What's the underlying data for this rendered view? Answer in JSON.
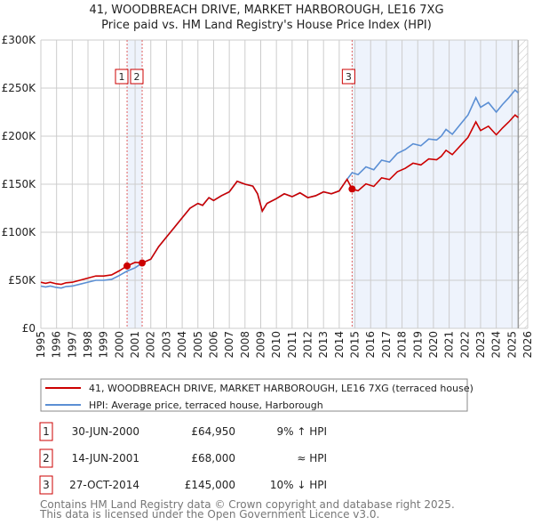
{
  "title": "41, WOODBREACH DRIVE, MARKET HARBOROUGH, LE16 7XG",
  "subtitle": "Price paid vs. HM Land Registry's House Price Index (HPI)",
  "colors": {
    "price": "#cc0000",
    "hpi": "#5b8fd4",
    "shade": "#eef3fc"
  },
  "chart_data": {
    "type": "line",
    "title": "41, WOODBREACH DRIVE, MARKET HARBOROUGH, LE16 7XG",
    "xlim": [
      1995,
      2026
    ],
    "ylim": [
      0,
      300000
    ],
    "y_ticks": [
      0,
      50000,
      100000,
      150000,
      200000,
      250000,
      300000
    ],
    "y_tick_labels": [
      "£0",
      "£50K",
      "£100K",
      "£150K",
      "£200K",
      "£250K",
      "£300K"
    ],
    "x_ticks": [
      "1995",
      "1996",
      "1997",
      "1998",
      "1999",
      "2000",
      "2001",
      "2002",
      "2003",
      "2004",
      "2005",
      "2006",
      "2007",
      "2008",
      "2009",
      "2010",
      "2011",
      "2012",
      "2013",
      "2014",
      "2015",
      "2016",
      "2017",
      "2018",
      "2019",
      "2020",
      "2021",
      "2022",
      "2023",
      "2024",
      "2025",
      "2026"
    ],
    "grid": true,
    "data_end": 2025.4,
    "hpi": [
      [
        1995.0,
        44
      ],
      [
        1995.3,
        43
      ],
      [
        1995.6,
        44
      ],
      [
        1996.0,
        42.5
      ],
      [
        1996.3,
        42
      ],
      [
        1996.6,
        43.5
      ],
      [
        1997.0,
        44
      ],
      [
        1997.5,
        46
      ],
      [
        1998.0,
        48
      ],
      [
        1998.5,
        50
      ],
      [
        1999.0,
        50
      ],
      [
        1999.5,
        51
      ],
      [
        2000.0,
        55
      ],
      [
        2000.49,
        59.6
      ],
      [
        2001.0,
        63
      ],
      [
        2001.45,
        68
      ],
      [
        2002.0,
        72
      ],
      [
        2002.5,
        85
      ],
      [
        2003.0,
        95
      ],
      [
        2003.5,
        105
      ],
      [
        2004.0,
        115
      ],
      [
        2004.5,
        125
      ],
      [
        2005.0,
        130
      ],
      [
        2005.3,
        128
      ],
      [
        2005.7,
        136
      ],
      [
        2006.0,
        133
      ],
      [
        2006.5,
        138
      ],
      [
        2007.0,
        142
      ],
      [
        2007.5,
        153
      ],
      [
        2008.0,
        150
      ],
      [
        2008.5,
        148
      ],
      [
        2008.8,
        140
      ],
      [
        2009.1,
        122
      ],
      [
        2009.4,
        130
      ],
      [
        2010.0,
        135
      ],
      [
        2010.5,
        140
      ],
      [
        2011.0,
        137
      ],
      [
        2011.5,
        141
      ],
      [
        2012.0,
        136
      ],
      [
        2012.5,
        138
      ],
      [
        2013.0,
        142
      ],
      [
        2013.5,
        140
      ],
      [
        2014.0,
        143
      ],
      [
        2014.5,
        155
      ],
      [
        2014.82,
        162
      ],
      [
        2015.2,
        160
      ],
      [
        2015.7,
        168
      ],
      [
        2016.2,
        165
      ],
      [
        2016.7,
        175
      ],
      [
        2017.2,
        173
      ],
      [
        2017.7,
        182
      ],
      [
        2018.2,
        186
      ],
      [
        2018.7,
        192
      ],
      [
        2019.2,
        190
      ],
      [
        2019.7,
        197
      ],
      [
        2020.2,
        196
      ],
      [
        2020.5,
        200
      ],
      [
        2020.8,
        207
      ],
      [
        2021.2,
        202
      ],
      [
        2021.7,
        212
      ],
      [
        2022.2,
        222
      ],
      [
        2022.7,
        240
      ],
      [
        2023.0,
        230
      ],
      [
        2023.5,
        235
      ],
      [
        2024.0,
        225
      ],
      [
        2024.4,
        233
      ],
      [
        2024.8,
        240
      ],
      [
        2025.2,
        248
      ],
      [
        2025.4,
        245
      ]
    ],
    "hpi_units": "thousand GBP",
    "sales": [
      {
        "num": "1",
        "year": 2000.49,
        "price": 64950,
        "date": "30-JUN-2000",
        "price_label": "£64,950",
        "hpi_label": "9% ↑ HPI"
      },
      {
        "num": "2",
        "year": 2001.45,
        "price": 68000,
        "date": "14-JUN-2001",
        "price_label": "£68,000",
        "hpi_label": "≈ HPI"
      },
      {
        "num": "3",
        "year": 2014.82,
        "price": 145000,
        "date": "27-OCT-2014",
        "price_label": "£145,000",
        "hpi_label": "10% ↓ HPI"
      }
    ],
    "legend": [
      "41, WOODBREACH DRIVE, MARKET HARBOROUGH, LE16 7XG (terraced house)",
      "HPI: Average price, terraced house, Harborough"
    ]
  },
  "footer": [
    "Contains HM Land Registry data © Crown copyright and database right 2025.",
    "This data is licensed under the Open Government Licence v3.0."
  ]
}
